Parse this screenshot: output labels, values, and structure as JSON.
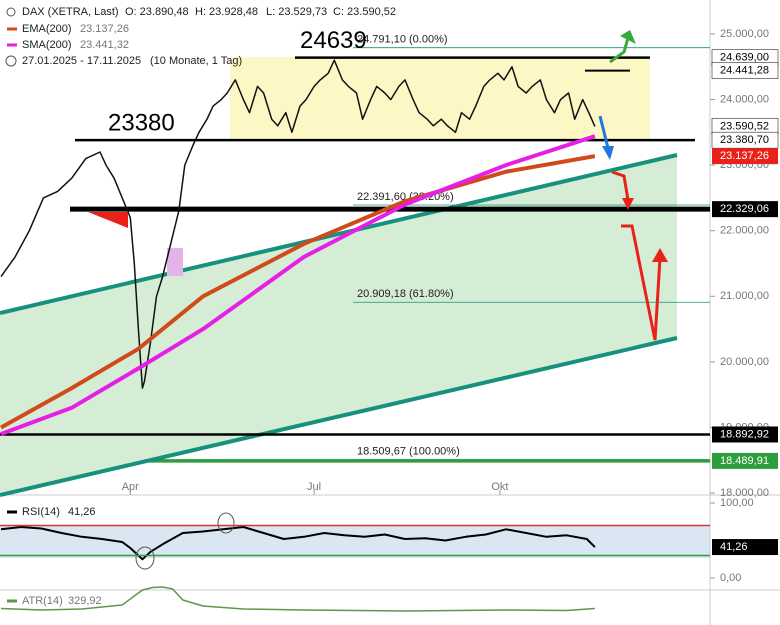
{
  "chart_data": {
    "type": "line",
    "header_stats": [
      "O: 23.890,48",
      "H: 23.928,48",
      "L: 23.529,73",
      "C: 23.590,52"
    ],
    "period": "27.01.2025 - 17.11.2025",
    "period_note": "(10 Monate, 1 Tag)",
    "xlim": [
      0,
      351
    ],
    "xticks": [
      {
        "value": 64,
        "label": "Apr"
      },
      {
        "value": 155,
        "label": "Jul"
      },
      {
        "value": 247,
        "label": "Okt"
      }
    ],
    "ylim": [
      17970,
      25518
    ],
    "yticks": [
      {
        "value": 25000,
        "label": "25.000,00"
      },
      {
        "value": 24000,
        "label": "24.000,00"
      },
      {
        "value": 23000,
        "label": "23.000,00"
      },
      {
        "value": 22000,
        "label": "22.000,00"
      },
      {
        "value": 21000,
        "label": "21.000,00"
      },
      {
        "value": 20000,
        "label": "20.000,00"
      },
      {
        "value": 19000,
        "label": "19.000,00"
      },
      {
        "value": 18000,
        "label": "18.000,00"
      }
    ],
    "series": [
      {
        "name": "DAX (XETRA, Last)",
        "color": "#111111",
        "x": [
          0,
          7,
          14,
          21,
          28,
          35,
          42,
          49,
          52,
          56,
          60,
          64,
          66,
          68,
          70,
          71,
          74,
          77,
          80,
          84,
          88,
          91,
          95,
          98,
          102,
          105,
          109,
          112,
          116,
          120,
          123,
          127,
          130,
          134,
          137,
          141,
          144,
          148,
          151,
          155,
          158,
          162,
          165,
          169,
          172,
          176,
          179,
          183,
          186,
          190,
          193,
          197,
          200,
          204,
          207,
          211,
          214,
          218,
          221,
          225,
          228,
          232,
          235,
          239,
          242,
          246,
          249,
          253,
          256,
          260,
          263,
          267,
          270,
          274,
          277,
          281,
          284,
          288,
          291,
          294
        ],
        "values": [
          21300,
          21600,
          22000,
          22500,
          22600,
          22800,
          23100,
          23200,
          23000,
          22800,
          22500,
          22200,
          21500,
          20500,
          19600,
          19700,
          20300,
          21000,
          21300,
          21800,
          22300,
          23000,
          23300,
          23500,
          23700,
          23900,
          24000,
          24100,
          24300,
          24000,
          23800,
          24200,
          24100,
          23700,
          23600,
          23800,
          23500,
          23900,
          24000,
          24200,
          24300,
          24400,
          24600,
          24300,
          24200,
          24100,
          23700,
          24000,
          24200,
          24100,
          24000,
          24200,
          24300,
          24000,
          23800,
          23700,
          23600,
          23700,
          23600,
          23500,
          23800,
          23700,
          23900,
          24200,
          24300,
          24400,
          24300,
          24500,
          24200,
          24100,
          24200,
          24300,
          24000,
          23800,
          24000,
          24100,
          23700,
          24000,
          23800,
          23590.52
        ]
      },
      {
        "name": "EMA(200)",
        "color": "#d04a1a",
        "last_label": "23.137,26",
        "x": [
          0,
          35,
          68,
          100,
          150,
          200,
          250,
          294
        ],
        "values": [
          19000,
          19600,
          20200,
          21000,
          21800,
          22450,
          22900,
          23137.26
        ]
      },
      {
        "name": "SMA(200)",
        "color": "#e61ee6",
        "last_label": "23.441,32",
        "x": [
          0,
          35,
          68,
          100,
          150,
          200,
          250,
          294
        ],
        "values": [
          18900,
          19300,
          19900,
          20500,
          21600,
          22400,
          23000,
          23441.32
        ]
      }
    ],
    "annotations": [
      {
        "text": "24639",
        "value": 24639
      },
      {
        "text": "23380",
        "value": 23380
      }
    ],
    "fibonacci": [
      {
        "value": 24791.1,
        "label": "24.791,10 (0.00%)"
      },
      {
        "value": 22391.6,
        "label": "22.391,60 (38.20%)"
      },
      {
        "value": 20909.18,
        "label": "20.909,18 (61.80%)"
      },
      {
        "value": 18509.67,
        "label": "18.509,67 (100.00%)"
      }
    ],
    "levels": [
      {
        "value": 24639.0,
        "label": "24.639,00",
        "color": "#000000"
      },
      {
        "value": 24441.28,
        "label": "24.441,28",
        "color": "#000000"
      },
      {
        "value": 23590.52,
        "label": "23.590,52",
        "color": "#ffffff"
      },
      {
        "value": 23380.7,
        "label": "23.380,70",
        "color": "#000000"
      },
      {
        "value": 23137.26,
        "label": "23.137,26",
        "color": "#e8221b"
      },
      {
        "value": 22329.06,
        "label": "22.329,06",
        "color": "#000000"
      },
      {
        "value": 18892.92,
        "label": "18.892,92",
        "color": "#000000"
      },
      {
        "value": 18489.91,
        "label": "18.489,91",
        "color": "#2e9d3e"
      }
    ],
    "rsi": {
      "name": "RSI(14)",
      "last_label": "41,26",
      "color": "#000000",
      "ylim": [
        0,
        100
      ],
      "yticks": [
        {
          "value": 100,
          "label": "100,00"
        },
        {
          "value": 0,
          "label": "0,00"
        }
      ],
      "bands": [
        30,
        70
      ],
      "x": [
        0,
        10,
        20,
        30,
        40,
        50,
        60,
        64,
        68,
        70,
        74,
        80,
        90,
        100,
        110,
        120,
        130,
        140,
        150,
        160,
        170,
        180,
        190,
        200,
        210,
        220,
        230,
        240,
        250,
        260,
        270,
        280,
        290,
        294
      ],
      "values": [
        65,
        68,
        66,
        60,
        55,
        52,
        48,
        40,
        30,
        25,
        35,
        45,
        60,
        62,
        65,
        68,
        60,
        52,
        55,
        60,
        57,
        55,
        58,
        52,
        53,
        50,
        55,
        58,
        65,
        60,
        55,
        57,
        52,
        41.26
      ]
    },
    "atr": {
      "name": "ATR(14)",
      "last_label": "329,92",
      "color": "#5a9a4a",
      "ylim": [
        0,
        800
      ],
      "x": [
        0,
        20,
        40,
        60,
        70,
        75,
        80,
        85,
        90,
        100,
        120,
        150,
        200,
        250,
        280,
        294
      ],
      "values": [
        330,
        300,
        320,
        400,
        700,
        750,
        760,
        720,
        500,
        380,
        320,
        300,
        280,
        300,
        290,
        329.92
      ]
    }
  }
}
